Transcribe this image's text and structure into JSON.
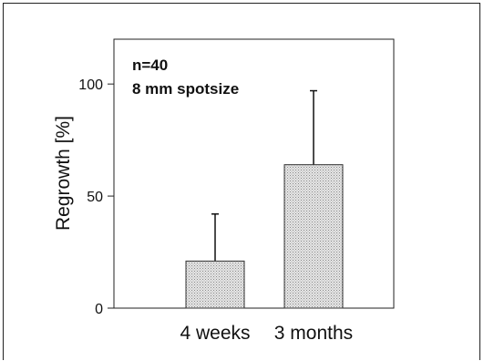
{
  "chart_data": {
    "type": "bar",
    "categories": [
      "4 weeks",
      "3 months"
    ],
    "values": [
      21,
      64
    ],
    "error_upper": [
      42,
      97
    ],
    "ylabel": "Regrowth [%]",
    "xlabel": "",
    "ylim": [
      0,
      120
    ],
    "yticks": [
      0,
      50,
      100
    ],
    "annotations": [
      "n=40",
      "8 mm spotsize"
    ],
    "grid": false,
    "bar_fill": "#d0d0d0",
    "bar_edge": "#333333"
  }
}
